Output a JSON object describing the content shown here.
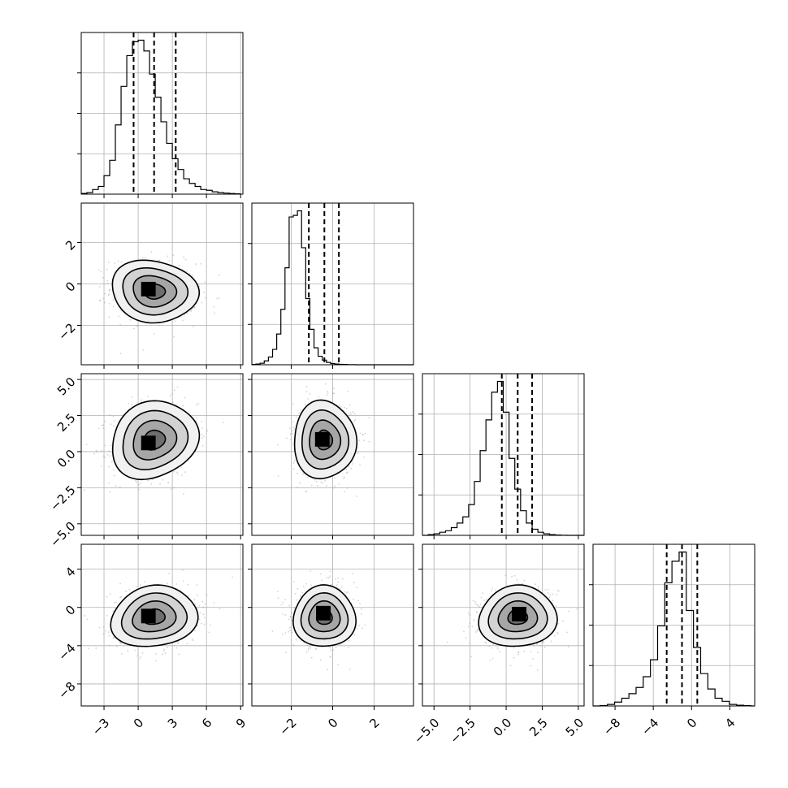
{
  "chart_data": {
    "type": "corner",
    "parameters": 4,
    "grid": true,
    "colors": {
      "line": "#000000",
      "grid": "#b0b0b0",
      "samples": "#808080",
      "density_light": "#f2f2f2",
      "density_dark": "#000000"
    },
    "axes": [
      {
        "range": [
          -5.0,
          9.2
        ],
        "ticks": [
          -3,
          0,
          3,
          6,
          9
        ],
        "tick_labels": [
          "−3",
          "0",
          "3",
          "6",
          "9"
        ]
      },
      {
        "range": [
          -3.9,
          3.9
        ],
        "ticks": [
          -2,
          0,
          2
        ],
        "tick_labels": [
          "−2",
          "0",
          "2"
        ]
      },
      {
        "range": [
          -5.8,
          5.4
        ],
        "ticks": [
          -5.0,
          -2.5,
          0.0,
          2.5,
          5.0
        ],
        "tick_labels": [
          "−5.0",
          "−2.5",
          "0.0",
          "2.5",
          "5.0"
        ]
      },
      {
        "range": [
          -10.3,
          6.6
        ],
        "ticks": [
          -8,
          -4,
          0,
          4
        ],
        "tick_labels": [
          "−8",
          "−4",
          "0",
          "4"
        ]
      }
    ],
    "marginals": [
      {
        "quantiles": [
          -0.4,
          1.4,
          3.3
        ],
        "y_max": 1.05,
        "bins_start": -5.0,
        "bin_width": 0.5,
        "counts": [
          0.005,
          0.01,
          0.03,
          0.05,
          0.12,
          0.22,
          0.45,
          0.7,
          0.9,
          0.99,
          1.0,
          0.93,
          0.78,
          0.63,
          0.47,
          0.33,
          0.23,
          0.16,
          0.1,
          0.07,
          0.05,
          0.03,
          0.025,
          0.015,
          0.01,
          0.007,
          0.004,
          0.002
        ]
      },
      {
        "quantiles": [
          -1.15,
          -0.4,
          0.3
        ],
        "y_max": 1.05,
        "bins_start": -3.9,
        "bin_width": 0.2,
        "counts": [
          0.002,
          0.005,
          0.01,
          0.025,
          0.05,
          0.1,
          0.2,
          0.36,
          0.63,
          0.96,
          0.97,
          1.0,
          0.76,
          0.43,
          0.23,
          0.11,
          0.055,
          0.03,
          0.015,
          0.008,
          0.005,
          0.003,
          0.002,
          0.001,
          0.001,
          0.0,
          0.0,
          0.0,
          0.0,
          0.0,
          0.0,
          0.0,
          0.0,
          0.0,
          0.0,
          0.0,
          0.0,
          0.0,
          0.0
        ]
      },
      {
        "quantiles": [
          -0.3,
          0.8,
          1.8
        ],
        "y_max": 1.05,
        "bins_start": -5.8,
        "bin_width": 0.4,
        "counts": [
          0.0,
          0.005,
          0.01,
          0.02,
          0.03,
          0.05,
          0.08,
          0.12,
          0.2,
          0.35,
          0.55,
          0.75,
          0.93,
          1.0,
          0.8,
          0.5,
          0.3,
          0.16,
          0.08,
          0.04,
          0.02,
          0.01,
          0.005,
          0.002,
          0.001,
          0.0,
          0.0,
          0.0
        ]
      },
      {
        "quantiles": [
          -2.6,
          -1.0,
          0.6
        ],
        "y_max": 1.05,
        "bins_start": -10.3,
        "bin_width": 0.75,
        "counts": [
          0.0,
          0.003,
          0.01,
          0.025,
          0.05,
          0.08,
          0.12,
          0.19,
          0.3,
          0.52,
          0.8,
          0.94,
          1.0,
          0.62,
          0.38,
          0.21,
          0.11,
          0.05,
          0.03,
          0.01,
          0.005,
          0.002,
          0.0
        ]
      }
    ],
    "pairs": [
      {
        "row": 1,
        "col": 0,
        "mean": [
          1.4,
          -0.35
        ],
        "sd": [
          1.9,
          0.75
        ],
        "corr": -0.1,
        "peak": [
          0.9,
          -0.25
        ]
      },
      {
        "row": 2,
        "col": 0,
        "mean": [
          1.4,
          0.8
        ],
        "sd": [
          1.9,
          1.35
        ],
        "corr": 0.15,
        "peak": [
          0.9,
          0.6
        ]
      },
      {
        "row": 2,
        "col": 1,
        "mean": [
          -0.4,
          0.8
        ],
        "sd": [
          0.75,
          1.35
        ],
        "corr": 0.0,
        "peak": [
          -0.5,
          0.85
        ]
      },
      {
        "row": 3,
        "col": 0,
        "mean": [
          1.4,
          -1.0
        ],
        "sd": [
          1.9,
          1.6
        ],
        "corr": 0.12,
        "peak": [
          0.9,
          -0.9
        ]
      },
      {
        "row": 3,
        "col": 1,
        "mean": [
          -0.4,
          -1.0
        ],
        "sd": [
          0.75,
          1.6
        ],
        "corr": 0.0,
        "peak": [
          -0.45,
          -0.6
        ]
      },
      {
        "row": 3,
        "col": 2,
        "mean": [
          0.8,
          -1.0
        ],
        "sd": [
          1.35,
          1.6
        ],
        "corr": 0.05,
        "peak": [
          0.9,
          -0.7
        ]
      }
    ],
    "contour_levels_sigma": [
      0.5,
      1.0,
      1.5,
      2.0
    ]
  }
}
